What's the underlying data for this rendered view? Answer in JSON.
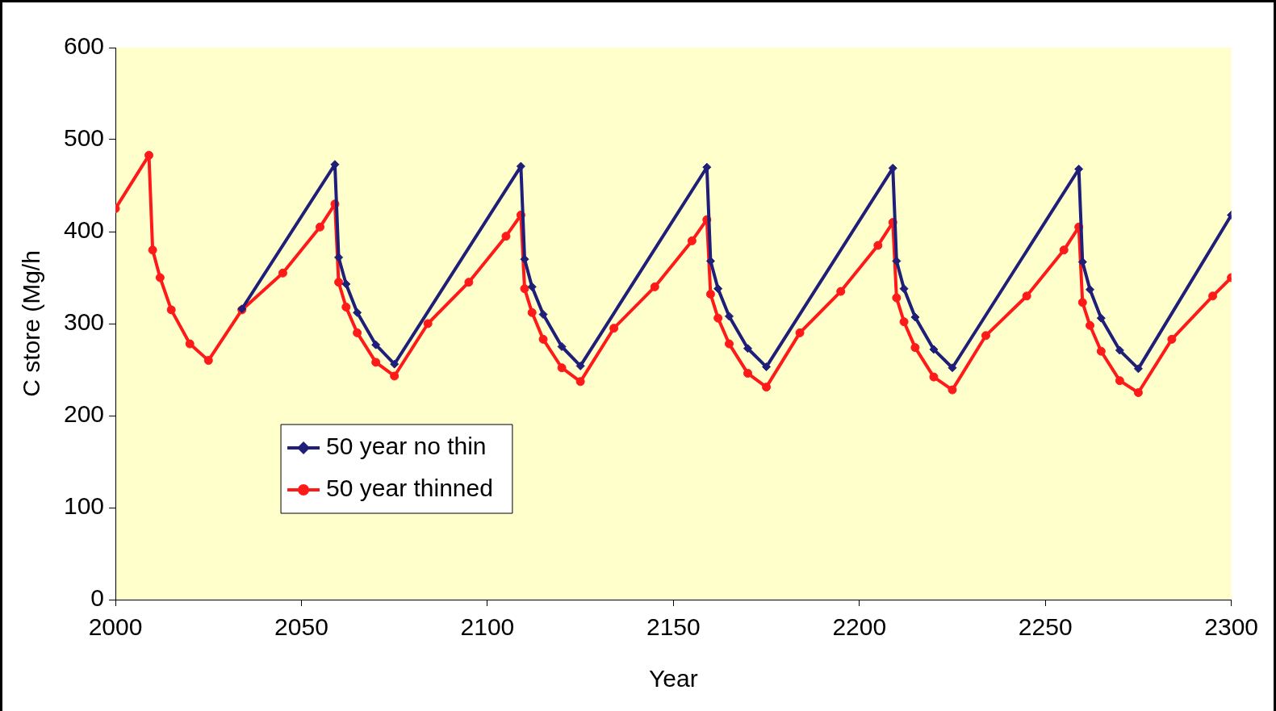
{
  "chart_data": {
    "type": "line",
    "xlabel": "Year",
    "ylabel": "C store (Mg/h",
    "xlim": [
      2000,
      2300
    ],
    "xticks": [
      2000,
      2050,
      2100,
      2150,
      2200,
      2250,
      2300
    ],
    "ylim": [
      0,
      600
    ],
    "yticks": [
      0,
      100,
      200,
      300,
      400,
      500,
      600
    ],
    "grid": false,
    "legend": "bottom left",
    "line_style": "solid",
    "series": [
      {
        "name": "50 year no thin",
        "color": "#1f1f7a",
        "marker": "diamond",
        "x": [
          2034,
          2059,
          2060,
          2062,
          2065,
          2070,
          2075,
          2109,
          2110,
          2112,
          2115,
          2120,
          2125,
          2159,
          2160,
          2162,
          2165,
          2170,
          2175,
          2209,
          2210,
          2212,
          2215,
          2220,
          2225,
          2259,
          2260,
          2262,
          2265,
          2270,
          2275,
          2300
        ],
        "values": [
          316,
          473,
          372,
          343,
          312,
          277,
          256,
          471,
          370,
          340,
          310,
          275,
          254,
          470,
          368,
          338,
          308,
          273,
          253,
          469,
          368,
          338,
          307,
          272,
          252,
          468,
          367,
          337,
          306,
          271,
          251,
          418
        ]
      },
      {
        "name": "50 year thinned",
        "color": "#ff1a1a",
        "marker": "circle",
        "x": [
          2000,
          2009,
          2010,
          2012,
          2015,
          2020,
          2025,
          2034,
          2045,
          2055,
          2059,
          2060,
          2062,
          2065,
          2070,
          2075,
          2084,
          2095,
          2105,
          2109,
          2110,
          2112,
          2115,
          2120,
          2125,
          2134,
          2145,
          2155,
          2159,
          2160,
          2162,
          2165,
          2170,
          2175,
          2184,
          2195,
          2205,
          2209,
          2210,
          2212,
          2215,
          2220,
          2225,
          2234,
          2245,
          2255,
          2259,
          2260,
          2262,
          2265,
          2270,
          2275,
          2284,
          2295,
          2300
        ],
        "values": [
          425,
          483,
          380,
          350,
          315,
          278,
          260,
          315,
          355,
          405,
          430,
          345,
          318,
          290,
          258,
          243,
          300,
          345,
          395,
          418,
          338,
          312,
          283,
          252,
          237,
          295,
          340,
          390,
          413,
          332,
          306,
          278,
          246,
          231,
          290,
          335,
          385,
          410,
          328,
          302,
          274,
          242,
          228,
          287,
          330,
          380,
          405,
          323,
          298,
          270,
          238,
          225,
          283,
          330,
          350
        ]
      }
    ]
  }
}
